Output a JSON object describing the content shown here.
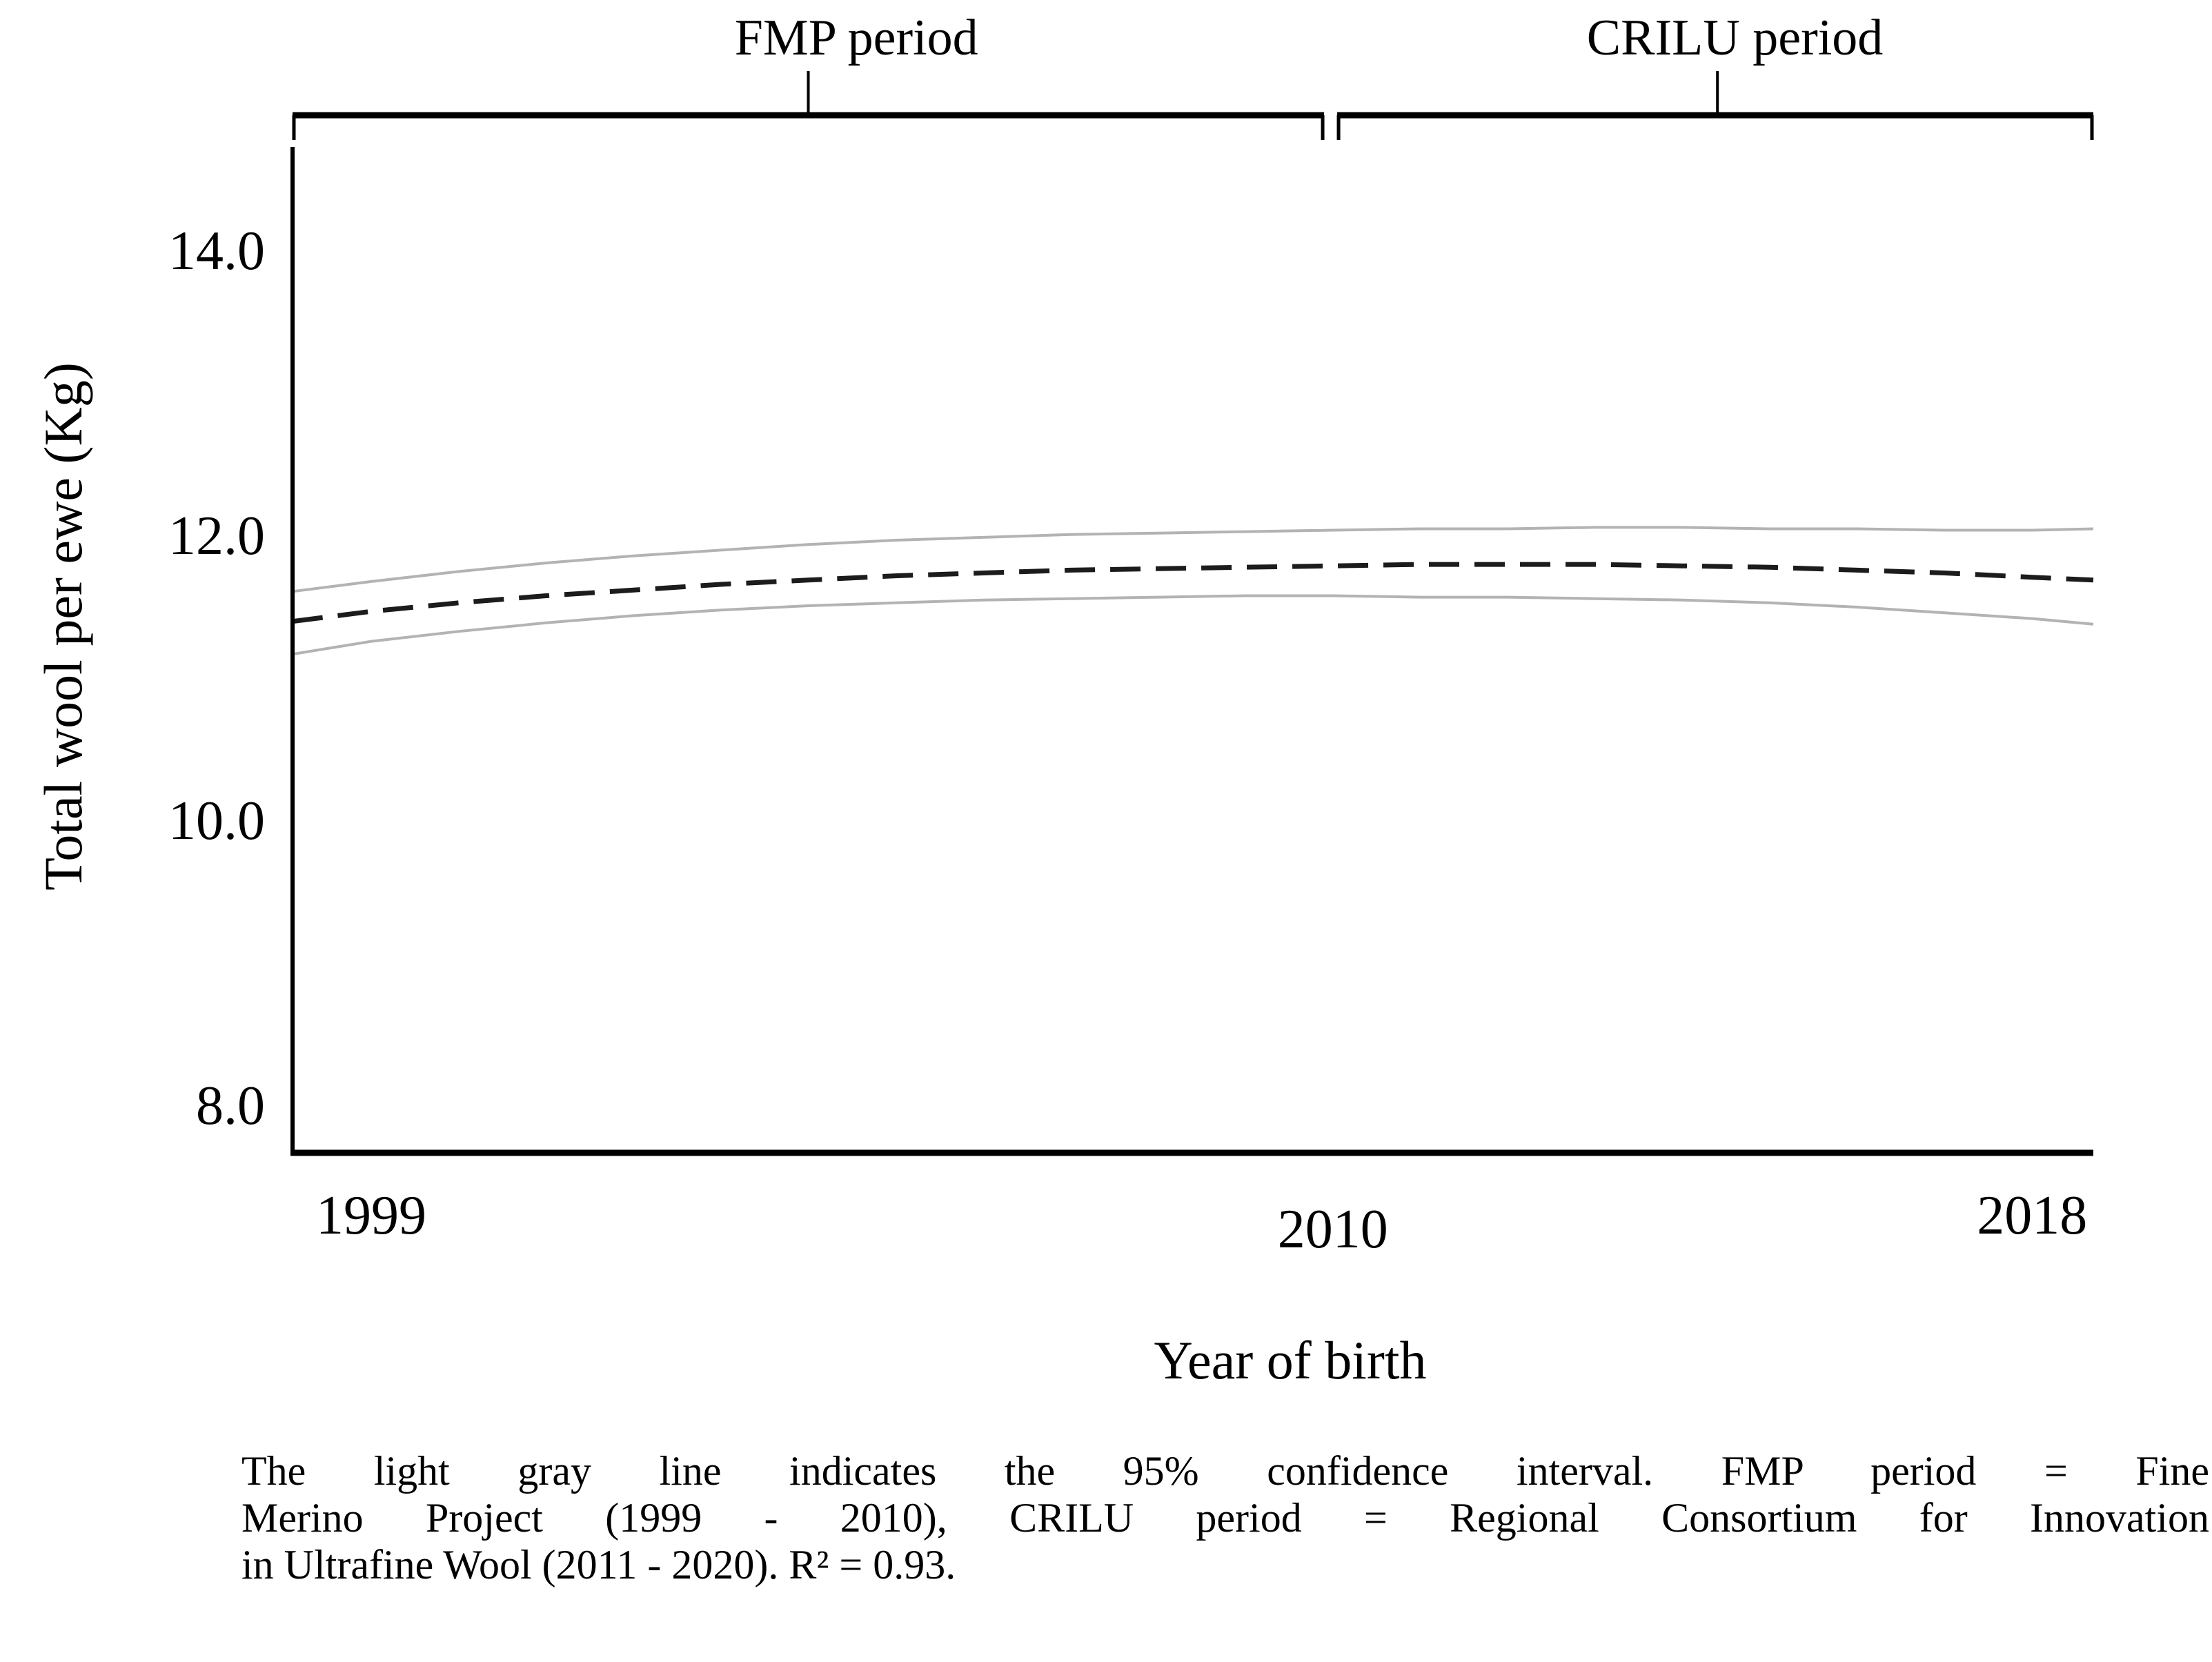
{
  "figure": {
    "background": "#ffffff",
    "axis_color": "#000000",
    "bracket_color": "#000000",
    "mean_line_color": "#1c1c1c",
    "ci_line_color": "#b3b3b3"
  },
  "chart_data": {
    "type": "line",
    "title": "",
    "xlabel": "Year of birth",
    "ylabel": "Total wool per ewe (Kg)",
    "xlim": [
      1998.1,
      2018.7
    ],
    "ylim": [
      7.67,
      14.73
    ],
    "grid": false,
    "legend": "none",
    "x": [
      1998.1,
      1999,
      2000,
      2001,
      2002,
      2003,
      2004,
      2005,
      2006,
      2007,
      2008,
      2009,
      2010,
      2011,
      2012,
      2013,
      2014,
      2015,
      2016,
      2017,
      2018,
      2018.7
    ],
    "series": [
      {
        "name": "Predicted mean (dashed line)",
        "style": "dashed",
        "values": [
          11.4,
          11.47,
          11.53,
          11.58,
          11.62,
          11.66,
          11.69,
          11.72,
          11.74,
          11.76,
          11.77,
          11.78,
          11.79,
          11.8,
          11.8,
          11.8,
          11.79,
          11.78,
          11.76,
          11.74,
          11.71,
          11.69
        ]
      },
      {
        "name": "95% confidence interval upper bound (light gray line)",
        "style": "light",
        "values": [
          11.61,
          11.68,
          11.75,
          11.81,
          11.86,
          11.9,
          11.94,
          11.97,
          11.99,
          12.01,
          12.02,
          12.03,
          12.04,
          12.05,
          12.05,
          12.06,
          12.06,
          12.05,
          12.05,
          12.04,
          12.04,
          12.05
        ]
      },
      {
        "name": "95% confidence interval lower bound (light gray line)",
        "style": "light",
        "values": [
          11.17,
          11.26,
          11.33,
          11.39,
          11.44,
          11.48,
          11.51,
          11.53,
          11.55,
          11.56,
          11.57,
          11.58,
          11.58,
          11.57,
          11.57,
          11.56,
          11.55,
          11.53,
          11.5,
          11.46,
          11.42,
          11.38
        ]
      }
    ],
    "y_ticks": [
      {
        "value": 14.0,
        "label": "14.0"
      },
      {
        "value": 12.0,
        "label": "12.0"
      },
      {
        "value": 10.0,
        "label": "10.0"
      },
      {
        "value": 8.0,
        "label": "8.0"
      }
    ],
    "x_ticks": [
      {
        "value": 1999,
        "label": "1999",
        "dy": 0
      },
      {
        "value": 2010,
        "label": "2010",
        "dy": 20
      },
      {
        "value": 2018,
        "label": "2018",
        "dy": 0
      }
    ],
    "annotations": [
      {
        "label": "FMP period",
        "span": [
          1998.1,
          2009.9
        ],
        "stem_year": 2004.0,
        "label_year": 2004.55
      },
      {
        "label": "CRILU period",
        "span": [
          2010.05,
          2018.7
        ],
        "stem_year": 2014.4,
        "label_year": 2014.6
      }
    ]
  },
  "axes": {
    "y_label": "Total wool per ewe (Kg)",
    "x_label": "Year of birth"
  },
  "caption": {
    "lines": [
      "The light gray line indicates the 95% confidence interval. FMP period = Fine",
      "Merino Project (1999 - 2010), CRILU period = Regional Consortium for Innovation",
      "in Ultrafine Wool (2011 - 2020). R² = 0.93."
    ]
  }
}
